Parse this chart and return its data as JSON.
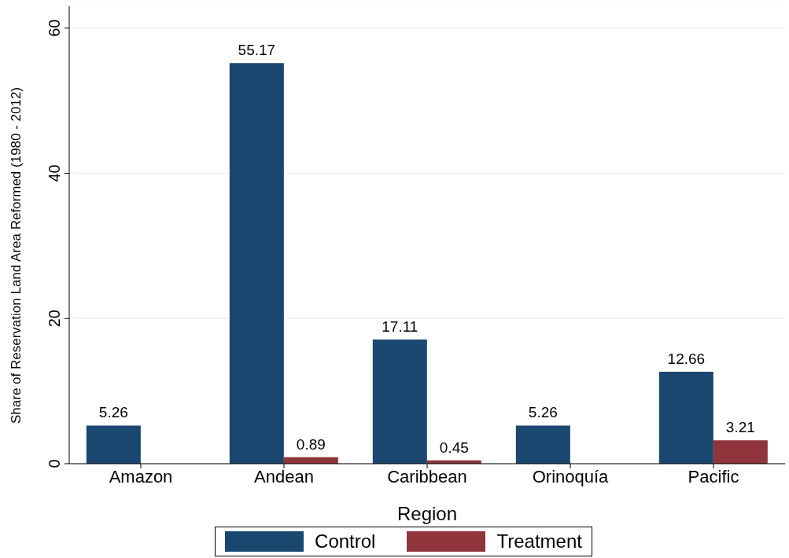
{
  "chart_data": {
    "type": "bar",
    "xlabel": "Region",
    "ylabel": "Share of Reservation Land Area Reformed (1980 - 2012)",
    "categories": [
      "Amazon",
      "Andean",
      "Caribbean",
      "Orinoquía",
      "Pacific"
    ],
    "series": [
      {
        "name": "Control",
        "color": "#1a476f",
        "values": [
          5.26,
          55.17,
          17.11,
          5.26,
          12.66
        ]
      },
      {
        "name": "Treatment",
        "color": "#90353b",
        "values": [
          null,
          0.89,
          0.45,
          null,
          3.21
        ]
      }
    ],
    "ylim": [
      0,
      63
    ],
    "yticks": [
      0,
      20,
      40,
      60
    ],
    "grid": "y",
    "legend": "bottom",
    "data_labels": true
  }
}
